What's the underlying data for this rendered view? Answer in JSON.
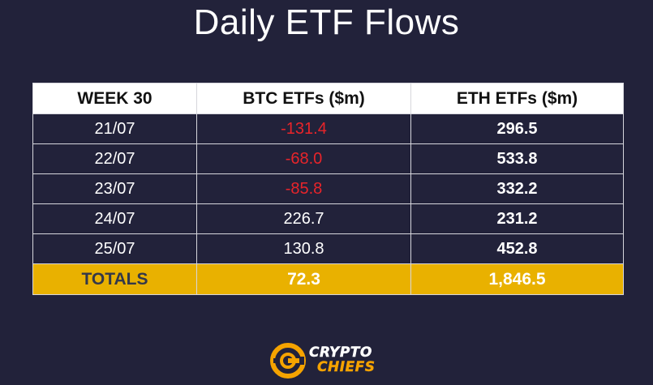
{
  "title": "Daily ETF Flows",
  "chart_data": {
    "type": "table",
    "title": "Daily ETF Flows",
    "columns": [
      "WEEK 30",
      "BTC ETFs ($m)",
      "ETH ETFs ($m)"
    ],
    "rows": [
      {
        "date": "21/07",
        "btc": "-131.4",
        "eth": "296.5"
      },
      {
        "date": "22/07",
        "btc": "-68.0",
        "eth": "533.8"
      },
      {
        "date": "23/07",
        "btc": "-85.8",
        "eth": "332.2"
      },
      {
        "date": "24/07",
        "btc": "226.7",
        "eth": "231.2"
      },
      {
        "date": "25/07",
        "btc": "130.8",
        "eth": "452.8"
      }
    ],
    "totals": {
      "label": "TOTALS",
      "btc": "72.3",
      "eth": "1,846.5"
    }
  },
  "brand": {
    "line1": "CRYPTO",
    "line2": "CHIEFS",
    "icon": "crypto-chiefs-c-logo-icon"
  },
  "colors": {
    "background": "#22223a",
    "negative": "#e8242a",
    "totals_row": "#e9b100",
    "header_row": "#ffffff",
    "brand_accent": "#f5a300"
  }
}
